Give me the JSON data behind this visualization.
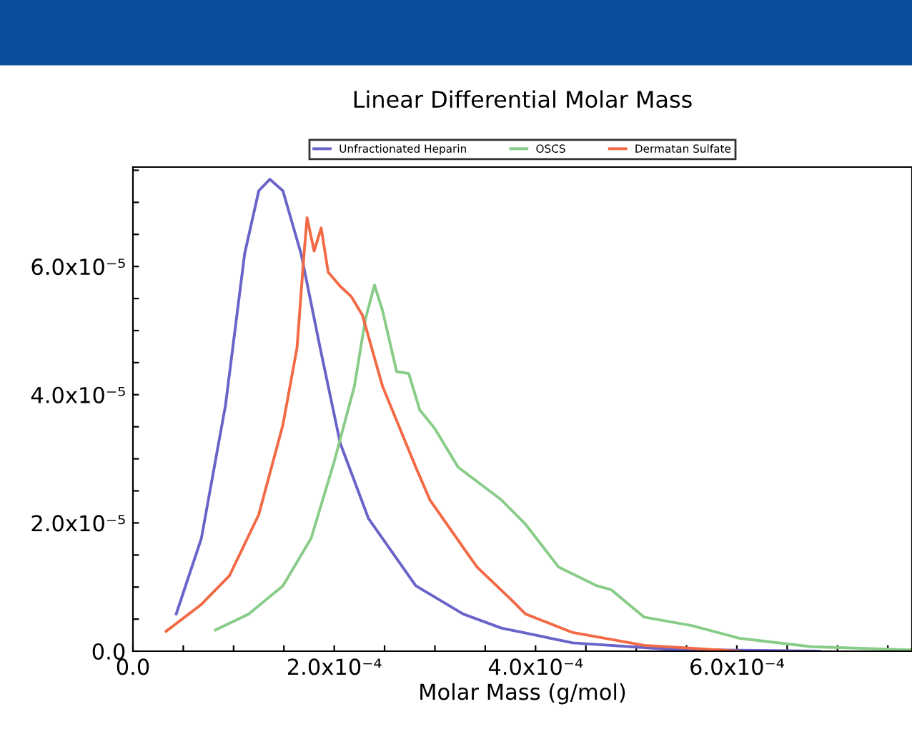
{
  "chart_data": {
    "type": "line",
    "title": "Linear Differential Molar Mass",
    "xlabel": "Molar Mass (g/mol)",
    "xlim": [
      0,
      0.000774
    ],
    "ylim": [
      0,
      7.55e-05
    ],
    "xticks": [
      {
        "value": 0,
        "label": "0.0"
      },
      {
        "value": 5e-05,
        "label": null
      },
      {
        "value": 0.0001,
        "label": null
      },
      {
        "value": 0.00015,
        "label": null
      },
      {
        "value": 0.0002,
        "label": "2.0x10⁻⁴"
      },
      {
        "value": 0.00025,
        "label": null
      },
      {
        "value": 0.0003,
        "label": null
      },
      {
        "value": 0.00035,
        "label": null
      },
      {
        "value": 0.0004,
        "label": "4.0x10⁻⁴"
      },
      {
        "value": 0.00045,
        "label": null
      },
      {
        "value": 0.0005,
        "label": null
      },
      {
        "value": 0.00055,
        "label": null
      },
      {
        "value": 0.0006,
        "label": "6.0x10⁻⁴"
      },
      {
        "value": 0.00065,
        "label": null
      },
      {
        "value": 0.0007,
        "label": null
      },
      {
        "value": 0.00075,
        "label": null
      }
    ],
    "yticks": [
      {
        "value": 0,
        "label": "0.0"
      },
      {
        "value": 5e-06,
        "label": null
      },
      {
        "value": 1e-05,
        "label": null
      },
      {
        "value": 1.5e-05,
        "label": null
      },
      {
        "value": 2e-05,
        "label": "2.0x10⁻⁵"
      },
      {
        "value": 2.5e-05,
        "label": null
      },
      {
        "value": 3e-05,
        "label": null
      },
      {
        "value": 3.5e-05,
        "label": null
      },
      {
        "value": 4e-05,
        "label": "4.0x10⁻⁵"
      },
      {
        "value": 4.5e-05,
        "label": null
      },
      {
        "value": 5e-05,
        "label": null
      },
      {
        "value": 5.5e-05,
        "label": null
      },
      {
        "value": 6e-05,
        "label": "6.0x10⁻⁵"
      },
      {
        "value": 6.5e-05,
        "label": null
      },
      {
        "value": 7e-05,
        "label": null
      },
      {
        "value": 7.5e-05,
        "label": null
      }
    ],
    "grid": false,
    "legend": "top",
    "marker": "none",
    "line_style": "solid",
    "series": [
      {
        "name": "Unfractionated Heparin",
        "color": "#6a63c9",
        "x": [
          4.3e-05,
          6.8e-05,
          9.2e-05,
          0.000111,
          0.000125,
          0.000136,
          0.000149,
          0.000167,
          0.000186,
          0.000206,
          0.000234,
          0.000281,
          0.000328,
          0.000366,
          0.000437,
          0.000532,
          0.000682
        ],
        "values": [
          5.8e-06,
          1.76e-05,
          3.84e-05,
          6.2e-05,
          7.18e-05,
          7.36e-05,
          7.18e-05,
          6.2e-05,
          4.73e-05,
          3.24e-05,
          2.07e-05,
          1.02e-05,
          5.8e-06,
          3.6e-06,
          1.3e-06,
          3e-07,
          0.0
        ]
      },
      {
        "name": "OSCS",
        "color": "#88cc88",
        "x": [
          8.2e-05,
          0.000115,
          0.000149,
          0.000177,
          0.0002,
          0.00022,
          0.000231,
          0.00024,
          0.000248,
          0.000262,
          0.000274,
          0.000285,
          0.0003,
          0.000323,
          0.000366,
          0.00039,
          0.000423,
          0.000461,
          0.000475,
          0.000508,
          0.000555,
          0.000603,
          0.000674,
          0.000773
        ],
        "values": [
          3.3e-06,
          5.8e-06,
          1.02e-05,
          1.76e-05,
          2.96e-05,
          4.13e-05,
          5.18e-05,
          5.71e-05,
          5.31e-05,
          4.36e-05,
          4.33e-05,
          3.76e-05,
          3.47e-05,
          2.87e-05,
          2.36e-05,
          1.98e-05,
          1.31e-05,
          1.02e-05,
          9.6e-06,
          5.3e-06,
          4e-06,
          2e-06,
          7e-07,
          2e-07
        ]
      },
      {
        "name": "Dermatan Sulfate",
        "color": "#f26a45",
        "x": [
          3.3e-05,
          6.8e-05,
          9.6e-05,
          0.000125,
          0.000149,
          0.000163,
          0.00017,
          0.000173,
          0.00018,
          0.000187,
          0.000194,
          0.000206,
          0.000217,
          0.000228,
          0.000248,
          0.000281,
          0.000295,
          0.000328,
          0.000342,
          0.000376,
          0.00039,
          0.000437,
          0.000508,
          0.000603
        ],
        "values": [
          3.1e-06,
          7.3e-06,
          1.18e-05,
          2.13e-05,
          3.53e-05,
          4.73e-05,
          6.2e-05,
          6.76e-05,
          6.24e-05,
          6.6e-05,
          5.91e-05,
          5.69e-05,
          5.53e-05,
          5.24e-05,
          4.13e-05,
          2.87e-05,
          2.36e-05,
          1.62e-05,
          1.31e-05,
          8e-06,
          5.8e-06,
          2.9e-06,
          9e-07,
          0.0
        ]
      }
    ]
  }
}
